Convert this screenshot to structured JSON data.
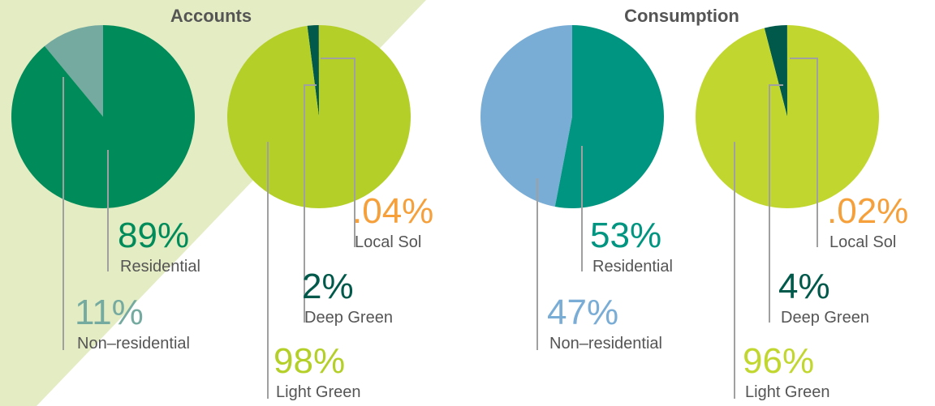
{
  "chart_data": [
    {
      "type": "pie",
      "title": "Accounts",
      "categories": [
        "Non–residential",
        "Residential"
      ],
      "values": [
        11,
        89
      ],
      "value_labels": [
        "11%",
        "89%"
      ],
      "colors": [
        "#74aaa0",
        "#008c5a"
      ]
    },
    {
      "type": "pie",
      "categories": [
        "Local Sol",
        "Deep Green",
        "Light Green"
      ],
      "values": [
        0.04,
        2,
        98
      ],
      "value_labels": [
        ".04%",
        "2%",
        "98%"
      ],
      "colors": [
        "#f5a03a",
        "#00594a",
        "#b4cf28"
      ]
    },
    {
      "type": "pie",
      "title": "Consumption",
      "categories": [
        "Non–residential",
        "Residential"
      ],
      "values": [
        47,
        53
      ],
      "value_labels": [
        "47%",
        "53%"
      ],
      "colors": [
        "#7aadd6",
        "#009580"
      ]
    },
    {
      "type": "pie",
      "categories": [
        "Local Sol",
        "Deep Green",
        "Light Green"
      ],
      "values": [
        0.02,
        4,
        96
      ],
      "value_labels": [
        ".02%",
        "4%",
        "96%"
      ],
      "colors": [
        "#f5a03a",
        "#00594a",
        "#c1d72f"
      ]
    }
  ]
}
